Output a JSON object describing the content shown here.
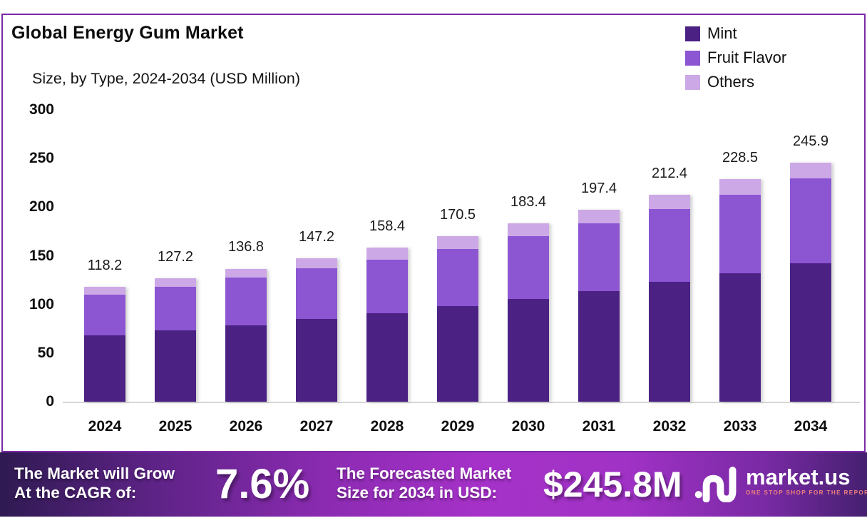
{
  "chart": {
    "title": "Global Energy Gum Market",
    "subtitle": "Size, by Type, 2024-2034 (USD Million)"
  },
  "chart_data": {
    "type": "bar",
    "stacked": true,
    "title": "Global Energy Gum Market Size, by Type, 2024-2034 (USD Million)",
    "categories": [
      "2024",
      "2025",
      "2026",
      "2027",
      "2028",
      "2029",
      "2030",
      "2031",
      "2032",
      "2033",
      "2034"
    ],
    "series": [
      {
        "name": "Mint",
        "color": "#4b2184",
        "values": [
          68,
          73,
          78.5,
          85,
          91,
          98,
          106,
          114,
          123,
          132,
          142
        ]
      },
      {
        "name": "Fruit Flavor",
        "color": "#8c55d2",
        "values": [
          42,
          45,
          49.5,
          52,
          55,
          59,
          64,
          69.5,
          75,
          80.5,
          87.9
        ]
      },
      {
        "name": "Others",
        "color": "#cca8e6",
        "values": [
          8.2,
          9.2,
          8.8,
          10.2,
          12.4,
          13.5,
          13.4,
          13.9,
          14.4,
          16,
          16
        ]
      }
    ],
    "totals": [
      118.2,
      127.2,
      136.8,
      147.2,
      158.4,
      170.5,
      183.4,
      197.4,
      212.4,
      228.5,
      245.9
    ],
    "y_ticks": [
      0,
      50,
      100,
      150,
      200,
      250,
      300
    ],
    "ylim": [
      0,
      300
    ],
    "grid": false,
    "legend_position": "top-right",
    "xlabel": "",
    "ylabel": ""
  },
  "banner": {
    "left_line1": "The Market will Grow",
    "left_line2": "At the CAGR of:",
    "cagr": "7.6%",
    "mid_line1": "The Forecasted Market",
    "mid_line2": "Size for 2034 in USD:",
    "forecast": "$245.8M",
    "logo_text": "market.us",
    "logo_tagline": "ONE STOP SHOP FOR THE REPORTS"
  },
  "colors": {
    "frame_border": "#7d2aa8",
    "baseline": "#d6d6d6",
    "mint": "#4b2184",
    "fruit_flavor": "#8c55d2",
    "others": "#cca8e6",
    "banner_bright": "#a531c8",
    "banner_dark": "#2f1a52",
    "tagline": "#ef7f7f"
  }
}
